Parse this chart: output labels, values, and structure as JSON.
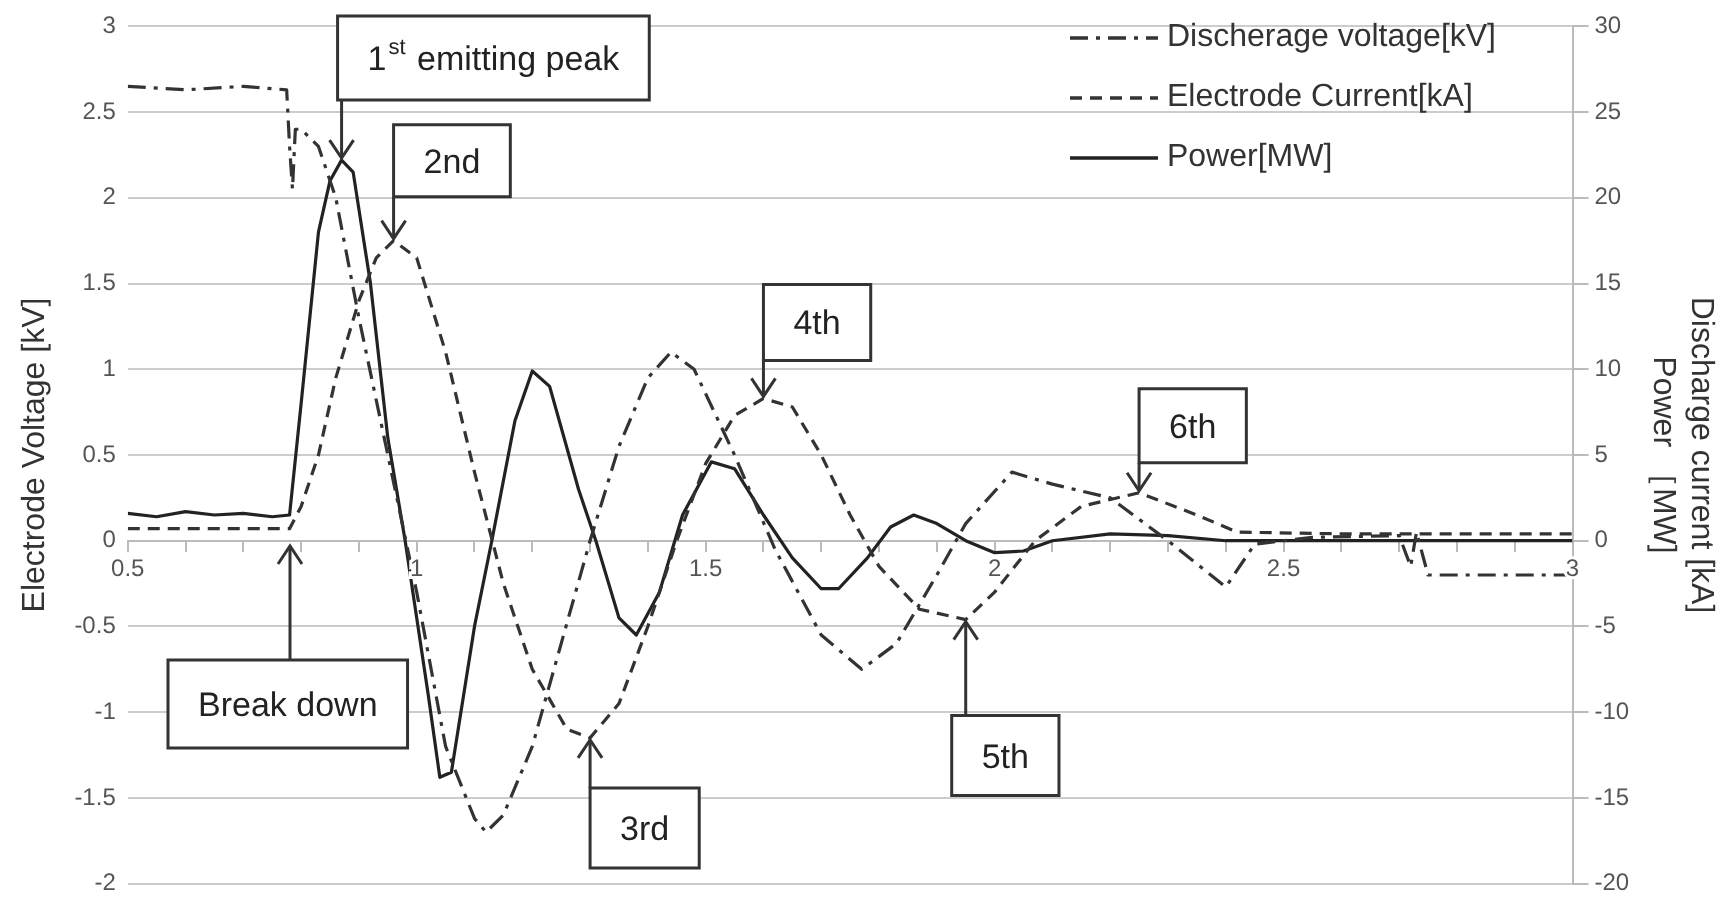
{
  "chart_data": {
    "type": "line",
    "ylabel": "Electrode Voltage [kV]",
    "y2label": "Discharge current [kA]\nPower ［MW]",
    "xlim": [
      0.5,
      3
    ],
    "xticks": [
      0.5,
      {
        "value": 0.6,
        "label": null
      },
      {
        "value": 0.7,
        "label": null
      },
      {
        "value": 0.8,
        "label": null
      },
      {
        "value": 0.9,
        "label": null
      },
      1,
      {
        "value": 1.1,
        "label": null
      },
      {
        "value": 1.2,
        "label": null
      },
      {
        "value": 1.3,
        "label": null
      },
      {
        "value": 1.4,
        "label": null
      },
      1.5,
      {
        "value": 1.6,
        "label": null
      },
      {
        "value": 1.7,
        "label": null
      },
      {
        "value": 1.8,
        "label": null
      },
      {
        "value": 1.9,
        "label": null
      },
      2,
      {
        "value": 2.1,
        "label": null
      },
      {
        "value": 2.2,
        "label": null
      },
      {
        "value": 2.3,
        "label": null
      },
      {
        "value": 2.4,
        "label": null
      },
      2.5,
      {
        "value": 2.6,
        "label": null
      },
      {
        "value": 2.7,
        "label": null
      },
      {
        "value": 2.8,
        "label": null
      },
      {
        "value": 2.9,
        "label": null
      },
      3
    ],
    "ylim": [
      -2,
      3
    ],
    "yticks": [
      -2,
      -1.5,
      -1,
      -0.5,
      0,
      0.5,
      1,
      1.5,
      2,
      2.5,
      3
    ],
    "y2lim": [
      -20,
      30
    ],
    "y2ticks": [
      -20,
      -15,
      -10,
      -5,
      0,
      5,
      10,
      15,
      20,
      25,
      30
    ],
    "grid": "y",
    "legend": "top right",
    "series": [
      {
        "name": "Discherage voltage[kV]",
        "axis": "y",
        "color": "#333333",
        "line_style": "dashdot",
        "x": [
          0.5,
          0.6,
          0.7,
          0.775,
          0.78,
          0.785,
          0.79,
          0.8,
          0.83,
          0.86,
          0.9,
          0.95,
          1.0,
          1.05,
          1.1,
          1.12,
          1.15,
          1.2,
          1.25,
          1.3,
          1.35,
          1.4,
          1.44,
          1.48,
          1.55,
          1.62,
          1.7,
          1.77,
          1.83,
          1.9,
          1.95,
          2.03,
          2.1,
          2.2,
          2.3,
          2.4,
          2.45,
          2.55,
          2.7,
          2.72,
          2.73,
          2.75,
          2.85,
          3.0
        ],
        "values": [
          2.65,
          2.63,
          2.65,
          2.63,
          2.3,
          2.05,
          2.4,
          2.4,
          2.3,
          2.0,
          1.3,
          0.5,
          -0.3,
          -1.2,
          -1.62,
          -1.7,
          -1.6,
          -1.2,
          -0.6,
          0.0,
          0.55,
          0.95,
          1.1,
          1.0,
          0.5,
          -0.05,
          -0.55,
          -0.75,
          -0.6,
          -0.2,
          0.1,
          0.4,
          0.33,
          0.25,
          0.0,
          -0.27,
          -0.02,
          0.02,
          0.03,
          -0.15,
          0.05,
          -0.2,
          -0.2,
          -0.2
        ]
      },
      {
        "name": "Electrode Current[kA]",
        "axis": "y2",
        "color": "#333333",
        "line_style": "dashed",
        "x": [
          0.5,
          0.78,
          0.8,
          0.83,
          0.86,
          0.9,
          0.93,
          0.96,
          1.0,
          1.05,
          1.1,
          1.15,
          1.2,
          1.26,
          1.3,
          1.35,
          1.4,
          1.45,
          1.5,
          1.55,
          1.6,
          1.65,
          1.7,
          1.75,
          1.8,
          1.87,
          1.95,
          2.0,
          2.07,
          2.15,
          2.25,
          2.35,
          2.42,
          2.6,
          3.0
        ],
        "values": [
          0.7,
          0.7,
          2,
          5,
          9.5,
          14,
          16.5,
          17.5,
          16.5,
          11,
          4,
          -2.5,
          -7.5,
          -11,
          -11.5,
          -9.5,
          -5,
          0,
          4.5,
          7.3,
          8.3,
          7.8,
          5,
          1.5,
          -1.5,
          -4,
          -4.6,
          -3,
          0,
          2,
          2.8,
          1.5,
          0.5,
          0.4,
          0.4
        ]
      },
      {
        "name": "Power[MW]",
        "axis": "y2",
        "color": "#222222",
        "line_style": "solid",
        "x": [
          0.5,
          0.55,
          0.6,
          0.65,
          0.7,
          0.75,
          0.78,
          0.8,
          0.83,
          0.85,
          0.87,
          0.89,
          0.92,
          0.95,
          0.98,
          1.02,
          1.04,
          1.06,
          1.1,
          1.13,
          1.17,
          1.2,
          1.23,
          1.28,
          1.31,
          1.35,
          1.38,
          1.42,
          1.46,
          1.51,
          1.55,
          1.6,
          1.65,
          1.7,
          1.73,
          1.78,
          1.82,
          1.86,
          1.9,
          1.95,
          2.0,
          2.05,
          2.1,
          2.2,
          2.3,
          2.4,
          2.5,
          3.0
        ],
        "values": [
          1.6,
          1.4,
          1.7,
          1.5,
          1.6,
          1.4,
          1.5,
          8,
          18,
          21,
          22.2,
          21.5,
          15,
          6,
          0,
          -9,
          -13.8,
          -13.5,
          -5,
          0,
          7,
          9.9,
          9,
          3,
          0,
          -4.5,
          -5.5,
          -3,
          1.5,
          4.6,
          4.2,
          1.5,
          -1,
          -2.8,
          -2.8,
          -1,
          0.8,
          1.5,
          1,
          0,
          -0.7,
          -0.6,
          0,
          0.4,
          0.3,
          0,
          0,
          0
        ]
      }
    ],
    "annotations": [
      {
        "text": "1$^{st}$ emitting peak",
        "x": 0.87,
        "y": 2.22
      },
      {
        "text": "2nd",
        "x": 0.96,
        "y": 1.75
      },
      "Break down",
      {
        "text": "3rd",
        "x": 1.3,
        "y": -1.15
      },
      {
        "text": "4th",
        "x": 1.6,
        "y": 0.83
      },
      {
        "text": "5th",
        "x": 1.95,
        "y": -0.46
      },
      {
        "text": "6th",
        "x": 2.25,
        "y": 0.28
      }
    ]
  }
}
